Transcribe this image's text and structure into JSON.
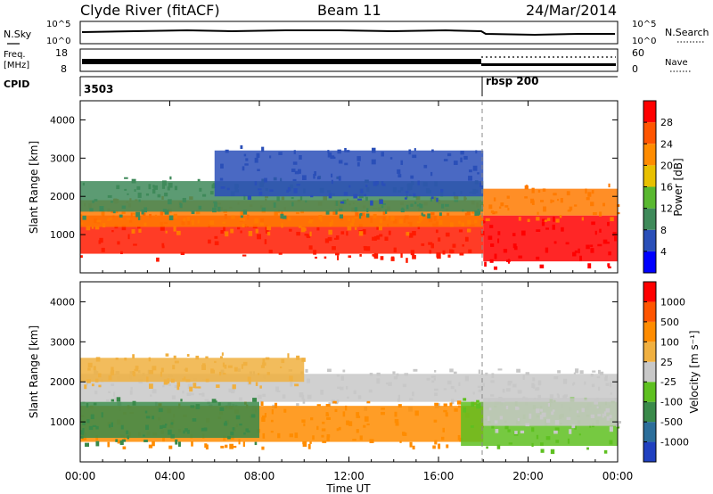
{
  "header": {
    "station": "Clyde River (fitACF)",
    "beam": "Beam 11",
    "date": "24/Mar/2014"
  },
  "top_panels": {
    "nsky_label": "N.Sky",
    "nsky_ticks": [
      "10^5",
      "10^0"
    ],
    "nsearch_label": "N.Search",
    "nsearch_ticks": [
      "10^5",
      "10^0"
    ],
    "freq_label_1": "Freq.",
    "freq_label_2": "[MHz]",
    "freq_ticks": [
      "18",
      "8"
    ],
    "nave_label": "Nave",
    "nave_ticks": [
      "60",
      "0"
    ],
    "cpid_label": "CPID",
    "cpid_values": [
      {
        "label": "3503",
        "start_hour": 0
      },
      {
        "label": "rbsp 200",
        "start_hour": 18
      }
    ]
  },
  "chart_data": [
    {
      "type": "heatmap",
      "ylabel": "Slant Range [km]",
      "xlabel": "Time UT",
      "x_range_hours": [
        0,
        24
      ],
      "ylim": [
        0,
        4500
      ],
      "yticks": [
        1000,
        2000,
        3000,
        4000
      ],
      "xticks": [
        "00:00",
        "04:00",
        "08:00",
        "12:00",
        "16:00",
        "20:00",
        "00:00"
      ],
      "colorbar": {
        "title": "Power [dB]",
        "ticks": [
          "4",
          "8",
          "12",
          "16",
          "20",
          "24",
          "28"
        ],
        "colors": [
          "#0000ff",
          "#2a4fb8",
          "#3f8a5a",
          "#59b830",
          "#e8c000",
          "#ff8c00",
          "#ff5500",
          "#ff0000"
        ]
      },
      "bands": [
        {
          "t0": 0,
          "t1": 18,
          "r0": 500,
          "r1": 1500,
          "color": "#ff1a00"
        },
        {
          "t0": 0,
          "t1": 18,
          "r0": 1200,
          "r1": 1900,
          "color": "#ff7a00"
        },
        {
          "t0": 0,
          "t1": 18,
          "r0": 1600,
          "r1": 2400,
          "color": "#3f8a5a"
        },
        {
          "t0": 6,
          "t1": 18,
          "r0": 2000,
          "r1": 3200,
          "color": "#2a4fb8"
        },
        {
          "t0": 18,
          "t1": 24,
          "r0": 300,
          "r1": 1500,
          "color": "#ff0000"
        },
        {
          "t0": 18,
          "t1": 24,
          "r0": 1500,
          "r1": 2200,
          "color": "#ff7a00"
        }
      ]
    },
    {
      "type": "heatmap",
      "ylabel": "Slant Range [km]",
      "xlabel": "Time UT",
      "x_range_hours": [
        0,
        24
      ],
      "ylim": [
        0,
        4500
      ],
      "yticks": [
        1000,
        2000,
        3000,
        4000
      ],
      "xticks": [
        "00:00",
        "04:00",
        "08:00",
        "12:00",
        "16:00",
        "20:00",
        "00:00"
      ],
      "colorbar": {
        "title": "Velocity [m s⁻¹]",
        "ticks": [
          "1000",
          "500",
          "100",
          "25",
          "-25",
          "-100",
          "-500",
          "-1000"
        ],
        "colors": [
          "#2040c0",
          "#2c6e9a",
          "#3a8a4a",
          "#5ec020",
          "#c8c8c8",
          "#f0b040",
          "#ff8c00",
          "#ff5500",
          "#ff0000"
        ]
      },
      "bands": [
        {
          "t0": 0,
          "t1": 24,
          "r0": 1500,
          "r1": 2200,
          "color": "#c8c8c8"
        },
        {
          "t0": 0,
          "t1": 18,
          "r0": 500,
          "r1": 1400,
          "color": "#ff8c00"
        },
        {
          "t0": 0,
          "t1": 8,
          "r0": 600,
          "r1": 1500,
          "color": "#3a8a4a"
        },
        {
          "t0": 0,
          "t1": 10,
          "r0": 2000,
          "r1": 2600,
          "color": "#f0b040"
        },
        {
          "t0": 17,
          "t1": 24,
          "r0": 400,
          "r1": 1500,
          "color": "#5ec020"
        },
        {
          "t0": 18,
          "t1": 24,
          "r0": 900,
          "r1": 1600,
          "color": "#c8c8c8"
        }
      ]
    }
  ]
}
